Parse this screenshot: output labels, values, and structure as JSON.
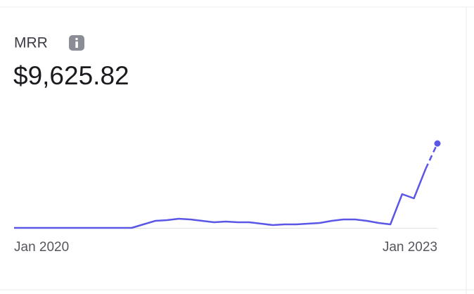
{
  "card": {
    "title": "MRR",
    "value": "$9,625.82"
  },
  "chart_data": {
    "type": "line",
    "color": "#5a56e6",
    "categories": [
      "Jan 2020",
      null,
      null,
      null,
      null,
      null,
      null,
      null,
      null,
      null,
      null,
      null,
      null,
      null,
      null,
      null,
      null,
      null,
      null,
      null,
      null,
      null,
      null,
      null,
      null,
      null,
      null,
      null,
      null,
      null,
      null,
      null,
      null,
      null,
      null,
      null,
      "Jan 2023"
    ],
    "values": [
      0,
      0,
      0,
      0,
      0,
      0,
      0,
      0,
      0,
      0,
      0,
      400,
      800,
      880,
      1040,
      960,
      800,
      640,
      720,
      640,
      640,
      480,
      320,
      400,
      400,
      480,
      560,
      800,
      960,
      960,
      800,
      560,
      400,
      3850,
      3370,
      6740,
      9625.82
    ]
  }
}
